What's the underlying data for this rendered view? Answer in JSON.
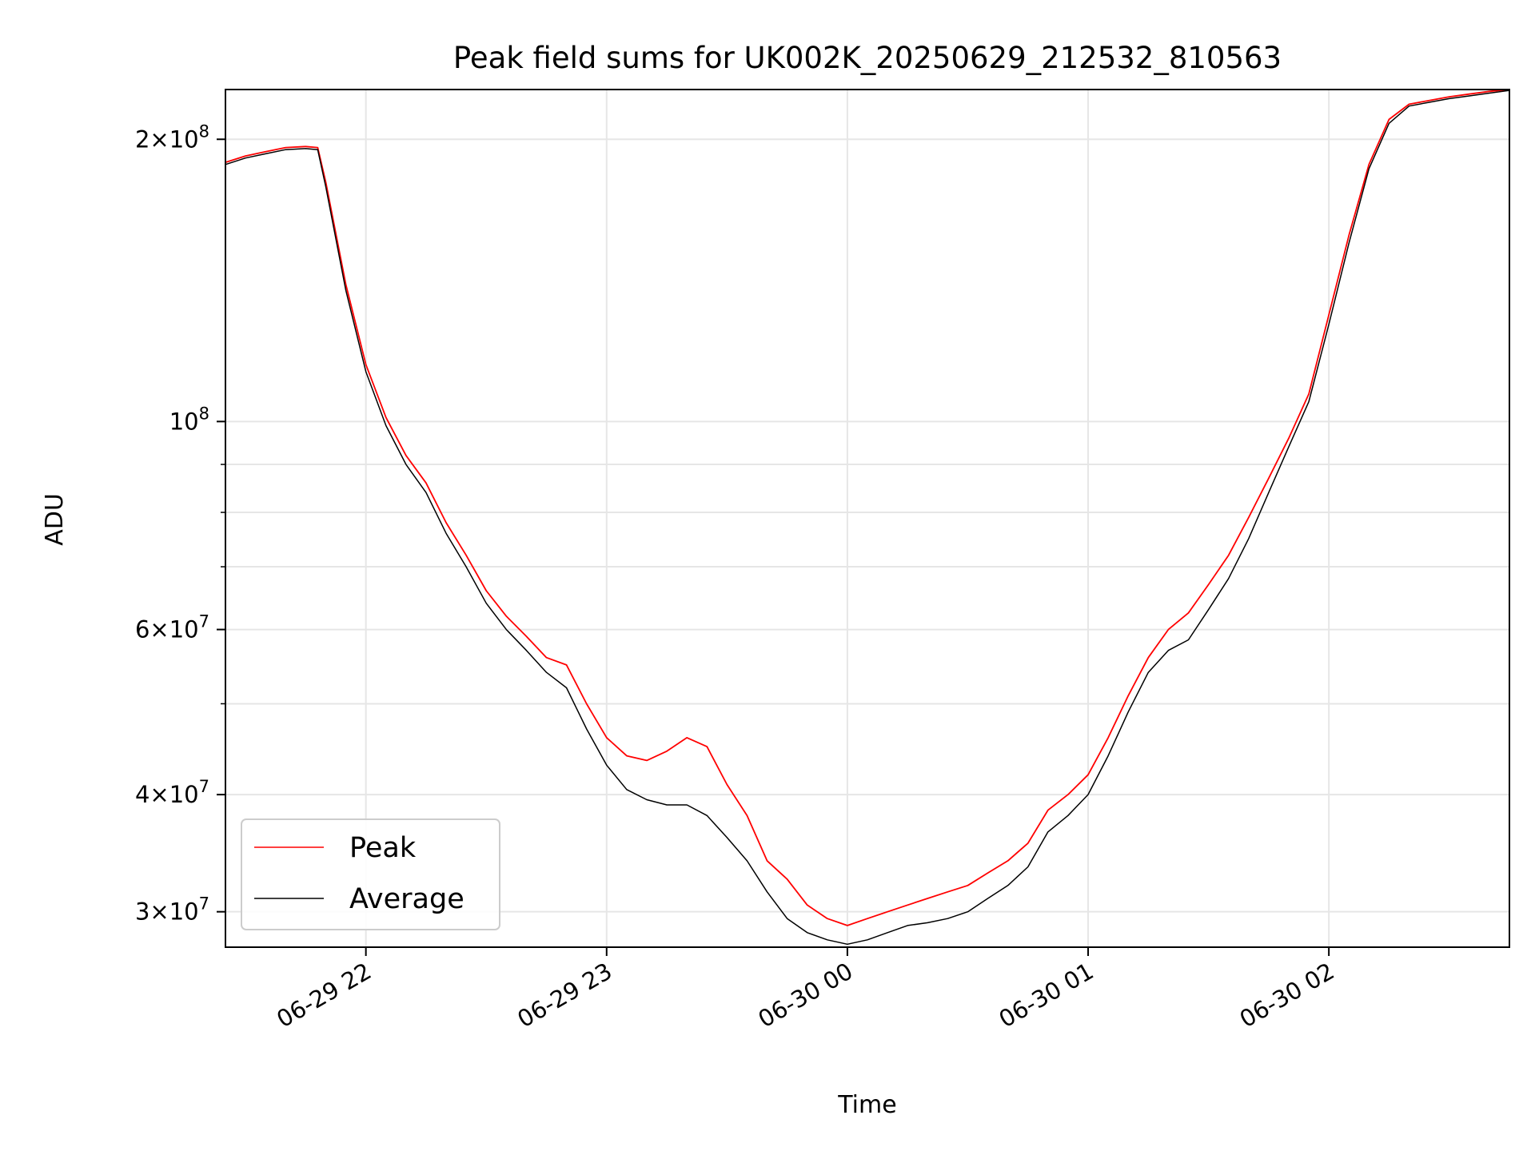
{
  "chart_data": {
    "type": "line",
    "title": "Peak field sums for UK002K_20250629_212532_810563",
    "xlabel": "Time",
    "ylabel": "ADU",
    "yscale": "log",
    "xlim": [
      "2025-06-29 21:25",
      "2025-06-30 02:45"
    ],
    "ylim": [
      27500000,
      226000000
    ],
    "grid": true,
    "legend_position": "lower-left",
    "x_ticks": [
      {
        "value": "2025-06-29 22:00",
        "label": "06-29 22"
      },
      {
        "value": "2025-06-29 23:00",
        "label": "06-29 23"
      },
      {
        "value": "2025-06-30 00:00",
        "label": "06-30 00"
      },
      {
        "value": "2025-06-30 01:00",
        "label": "06-30 01"
      },
      {
        "value": "2025-06-30 02:00",
        "label": "06-30 02"
      }
    ],
    "y_ticks": [
      {
        "value": 30000000,
        "base": "3",
        "exp": "7"
      },
      {
        "value": 40000000,
        "base": "4",
        "exp": "7"
      },
      {
        "value": 60000000,
        "base": "6",
        "exp": "7"
      },
      {
        "value": 100000000,
        "base": "",
        "exp": "8"
      },
      {
        "value": 200000000,
        "base": "2",
        "exp": "8"
      }
    ],
    "y_minor_ticks": [
      50000000,
      70000000,
      80000000,
      90000000
    ],
    "x": [
      "2025-06-29 21:25",
      "2025-06-29 21:30",
      "2025-06-29 21:35",
      "2025-06-29 21:40",
      "2025-06-29 21:45",
      "2025-06-29 21:48",
      "2025-06-29 21:50",
      "2025-06-29 21:55",
      "2025-06-29 22:00",
      "2025-06-29 22:05",
      "2025-06-29 22:10",
      "2025-06-29 22:15",
      "2025-06-29 22:20",
      "2025-06-29 22:25",
      "2025-06-29 22:30",
      "2025-06-29 22:35",
      "2025-06-29 22:40",
      "2025-06-29 22:45",
      "2025-06-29 22:50",
      "2025-06-29 22:55",
      "2025-06-29 23:00",
      "2025-06-29 23:05",
      "2025-06-29 23:10",
      "2025-06-29 23:15",
      "2025-06-29 23:20",
      "2025-06-29 23:25",
      "2025-06-29 23:30",
      "2025-06-29 23:35",
      "2025-06-29 23:40",
      "2025-06-29 23:45",
      "2025-06-29 23:50",
      "2025-06-29 23:55",
      "2025-06-30 00:00",
      "2025-06-30 00:05",
      "2025-06-30 00:10",
      "2025-06-30 00:15",
      "2025-06-30 00:20",
      "2025-06-30 00:25",
      "2025-06-30 00:30",
      "2025-06-30 00:35",
      "2025-06-30 00:40",
      "2025-06-30 00:45",
      "2025-06-30 00:50",
      "2025-06-30 00:55",
      "2025-06-30 01:00",
      "2025-06-30 01:05",
      "2025-06-30 01:10",
      "2025-06-30 01:15",
      "2025-06-30 01:20",
      "2025-06-30 01:25",
      "2025-06-30 01:30",
      "2025-06-30 01:35",
      "2025-06-30 01:40",
      "2025-06-30 01:45",
      "2025-06-30 01:50",
      "2025-06-30 01:55",
      "2025-06-30 02:00",
      "2025-06-30 02:05",
      "2025-06-30 02:10",
      "2025-06-30 02:15",
      "2025-06-30 02:20",
      "2025-06-30 02:25",
      "2025-06-30 02:30",
      "2025-06-30 02:35",
      "2025-06-30 02:40",
      "2025-06-30 02:45"
    ],
    "series": [
      {
        "name": "Peak",
        "color": "#ff0000",
        "values": [
          189000000,
          192000000,
          194000000,
          196000000,
          196500000,
          196000000,
          180000000,
          140000000,
          115000000,
          101000000,
          92000000,
          86000000,
          78000000,
          72000000,
          66000000,
          62000000,
          59000000,
          56000000,
          55000000,
          50000000,
          46000000,
          44000000,
          43500000,
          44500000,
          46000000,
          45000000,
          41000000,
          38000000,
          34000000,
          32500000,
          30500000,
          29500000,
          29000000,
          29500000,
          30000000,
          30500000,
          31000000,
          31500000,
          32000000,
          33000000,
          34000000,
          35500000,
          38500000,
          40000000,
          42000000,
          46000000,
          51000000,
          56000000,
          60000000,
          62500000,
          67000000,
          72000000,
          79000000,
          87000000,
          96000000,
          107000000,
          130000000,
          158000000,
          188000000,
          210000000,
          218000000,
          220000000,
          222000000,
          223500000,
          225000000,
          226000000
        ]
      },
      {
        "name": "Average",
        "color": "#000000",
        "values": [
          188000000,
          191000000,
          193000000,
          195000000,
          195500000,
          195000000,
          178000000,
          138000000,
          113000000,
          99000000,
          90000000,
          84000000,
          76000000,
          70000000,
          64000000,
          60000000,
          57000000,
          54000000,
          52000000,
          47000000,
          43000000,
          40500000,
          39500000,
          39000000,
          39000000,
          38000000,
          36000000,
          34000000,
          31500000,
          29500000,
          28500000,
          28000000,
          27700000,
          28000000,
          28500000,
          29000000,
          29200000,
          29500000,
          30000000,
          31000000,
          32000000,
          33500000,
          36500000,
          38000000,
          40000000,
          44000000,
          49000000,
          54000000,
          57000000,
          58500000,
          63000000,
          68000000,
          75000000,
          84000000,
          94000000,
          105000000,
          127000000,
          155000000,
          186000000,
          208000000,
          217000000,
          219000000,
          221000000,
          222500000,
          224000000,
          225500000
        ]
      }
    ]
  }
}
